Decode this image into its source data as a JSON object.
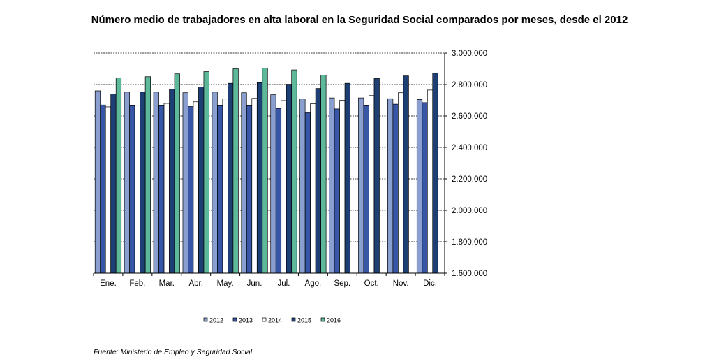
{
  "chart_data": {
    "type": "bar",
    "title": "Número medio de trabajadores en alta laboral en la Seguridad Social comparados por meses, desde el 2012",
    "xlabel": "",
    "ylabel": "",
    "categories": [
      "Ene.",
      "Feb.",
      "Mar.",
      "Abr.",
      "May.",
      "Jun.",
      "Jul.",
      "Ago.",
      "Sep.",
      "Oct.",
      "Nov.",
      "Dic."
    ],
    "ylim": [
      1600000,
      3000000
    ],
    "yticks": [
      1600000,
      1800000,
      2000000,
      2200000,
      2400000,
      2600000,
      2800000,
      3000000
    ],
    "ytick_labels": [
      "1.600.000",
      "1.800.000",
      "2.000.000",
      "2.200.000",
      "2.400.000",
      "2.600.000",
      "2.800.000",
      "3.000.000"
    ],
    "grid": "horizontal-dashed",
    "legend_position": "bottom",
    "series": [
      {
        "name": "2012",
        "color": "#8a9fd0",
        "values": [
          2760000,
          2752000,
          2752000,
          2748000,
          2752000,
          2748000,
          2735000,
          2708000,
          2715000,
          2715000,
          2710000,
          2705000
        ]
      },
      {
        "name": "2013",
        "color": "#3757a6",
        "values": [
          2670000,
          2665000,
          2665000,
          2660000,
          2665000,
          2665000,
          2648000,
          2620000,
          2645000,
          2665000,
          2675000,
          2685000
        ]
      },
      {
        "name": "2014",
        "color": "#ffffff",
        "values": [
          2658000,
          2668000,
          2680000,
          2690000,
          2708000,
          2712000,
          2698000,
          2678000,
          2700000,
          2730000,
          2748000,
          2765000
        ]
      },
      {
        "name": "2015",
        "color": "#1d3f73",
        "values": [
          2740000,
          2752000,
          2770000,
          2785000,
          2808000,
          2812000,
          2802000,
          2775000,
          2808000,
          2838000,
          2855000,
          2872000
        ]
      },
      {
        "name": "2016",
        "color": "#5eb89a",
        "values": [
          2842000,
          2850000,
          2868000,
          2882000,
          2900000,
          2905000,
          2893000,
          2860000,
          null,
          null,
          null,
          null
        ]
      }
    ]
  },
  "source": "Fuente: Ministerio de Empleo y Seguridad Social"
}
